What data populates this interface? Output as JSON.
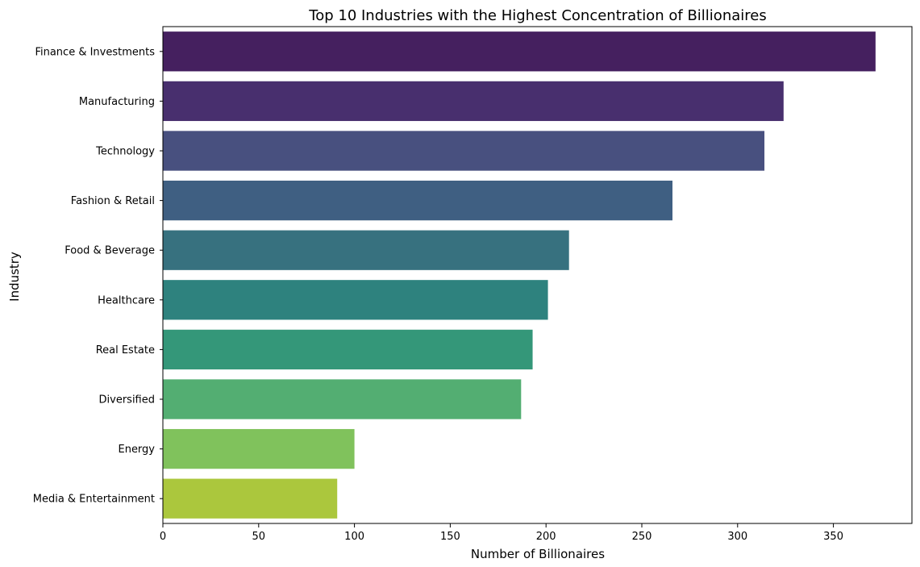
{
  "chart_data": {
    "type": "bar",
    "orientation": "horizontal",
    "title": "Top 10 Industries with the Highest Concentration of Billionaires",
    "xlabel": "Number of Billionaires",
    "ylabel": "Industry",
    "categories": [
      "Finance & Investments",
      "Manufacturing",
      "Technology",
      "Fashion & Retail",
      "Food & Beverage",
      "Healthcare",
      "Real Estate",
      "Diversified",
      "Energy",
      "Media & Entertainment"
    ],
    "values": [
      372,
      324,
      314,
      266,
      212,
      201,
      193,
      187,
      100,
      91
    ],
    "colors": [
      "#45205f",
      "#482f6e",
      "#48507f",
      "#3f5f82",
      "#37717f",
      "#2e827e",
      "#349779",
      "#53ae72",
      "#80c25c",
      "#abc73d"
    ],
    "xlim": [
      0,
      391
    ],
    "xticks": [
      0,
      50,
      100,
      150,
      200,
      250,
      300,
      350
    ],
    "grid": false,
    "legend": "none"
  }
}
